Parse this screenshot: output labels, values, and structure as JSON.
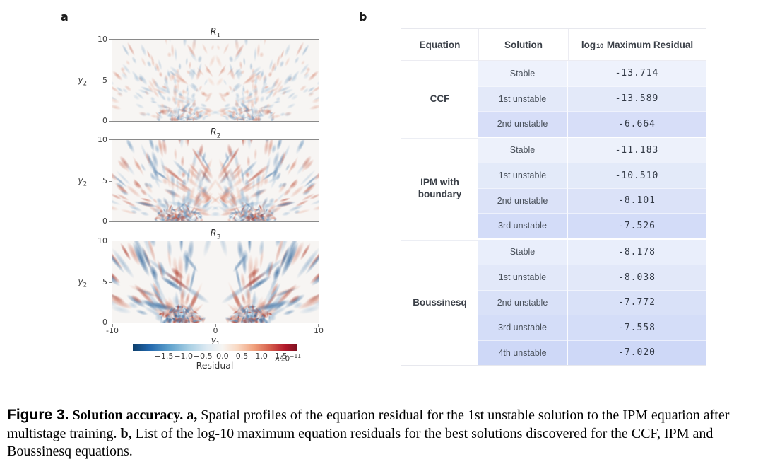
{
  "panel_labels": {
    "a": "a",
    "b": "b"
  },
  "chart_data": {
    "type": "heatmap",
    "description": "Three stacked 2D spatial residual maps (R1, R2, R3) for the 1st unstable IPM solution. Diverging red/blue streaks fan out from two foci at the bottom (y1 near -4 and +4), nearly mirror-symmetric about y1=0, with amplitude increasing from R1 to R3 and an almost-zero vertical band at the centre of R3. Residual magnitudes are of order 1e-11.",
    "panels": [
      {
        "title_base": "R",
        "title_sub": "1",
        "render": {
          "seed": 7,
          "streaks": 210,
          "lenMin": 4,
          "lenMax": 12,
          "widMin": 1.8,
          "widMax": 3.4,
          "intensity": 0.52,
          "centerGap": 8,
          "specks": 70,
          "diagBoost": 1.0
        }
      },
      {
        "title_base": "R",
        "title_sub": "2",
        "render": {
          "seed": 15,
          "streaks": 210,
          "lenMin": 6,
          "lenMax": 18,
          "widMin": 2.0,
          "widMax": 4.0,
          "intensity": 0.8,
          "centerGap": 10,
          "specks": 110,
          "diagBoost": 1.1
        }
      },
      {
        "title_base": "R",
        "title_sub": "3",
        "render": {
          "seed": 23,
          "streaks": 135,
          "lenMin": 10,
          "lenMax": 30,
          "widMin": 2.4,
          "widMax": 5.0,
          "intensity": 1.05,
          "centerGap": 26,
          "specks": 95,
          "diagBoost": 1.35
        }
      }
    ],
    "y_axis": {
      "label_base": "y",
      "label_sub": "2",
      "ticks": [
        "10",
        "5",
        "0"
      ],
      "range": [
        0,
        10
      ]
    },
    "x_axis": {
      "label_base": "y",
      "label_sub": "1",
      "ticks": [
        "-10",
        "0",
        "10"
      ],
      "range": [
        -10,
        10
      ]
    },
    "colorbar": {
      "label": "Residual",
      "ticks": [
        "−1.5",
        "−1.0",
        "−0.5",
        "0.0",
        "0.5",
        "1.0",
        "1.5"
      ],
      "exponent_base": "×10",
      "exponent_sup": "−11",
      "colormap": "RdBu_r",
      "neg_color": "#2166ac",
      "pos_color": "#b2182b",
      "plot_bg": "#f7f5f3",
      "pos_ramp": [
        "#eeb49b",
        "#a52f22"
      ],
      "neg_ramp": [
        "#a9c6dd",
        "#2e6399"
      ],
      "gradient_stops": [
        "#0d3f6b 0%",
        "#2166ac 10%",
        "#5da0cc 22%",
        "#a6cee3 34%",
        "#dce9f2 45%",
        "#f7f5f2 54.7%",
        "#f9d8c2 64%",
        "#f0a07c 74%",
        "#d45c4b 84%",
        "#b2182b 93%",
        "#7f1122 100%"
      ]
    }
  },
  "table": {
    "headers": {
      "equation": "Equation",
      "solution": "Solution",
      "residual_base": "log",
      "residual_sub": "10",
      "residual_rest": "Maximum Residual"
    },
    "groups": [
      {
        "equation": "CCF",
        "rows": [
          {
            "solution": "Stable",
            "residual": "-13.714",
            "shade": "#eef2fc"
          },
          {
            "solution": "1st unstable",
            "residual": "-13.589",
            "shade": "#e3e9f9"
          },
          {
            "solution": "2nd unstable",
            "residual": "-6.664",
            "shade": "#d7def8"
          }
        ]
      },
      {
        "equation": "IPM with boundary",
        "rows": [
          {
            "solution": "Stable",
            "residual": "-11.183",
            "shade": "#edf1fb"
          },
          {
            "solution": "1st unstable",
            "residual": "-10.510",
            "shade": "#e3eaf9"
          },
          {
            "solution": "2nd unstable",
            "residual": "-8.101",
            "shade": "#dbe2f8"
          },
          {
            "solution": "3rd unstable",
            "residual": "-7.526",
            "shade": "#d3dcf8"
          }
        ]
      },
      {
        "equation": "Boussinesq",
        "rows": [
          {
            "solution": "Stable",
            "residual": "-8.178",
            "shade": "#e9eefb"
          },
          {
            "solution": "1st unstable",
            "residual": "-8.038",
            "shade": "#e2e8f9"
          },
          {
            "solution": "2nd unstable",
            "residual": "-7.772",
            "shade": "#d9e1f8"
          },
          {
            "solution": "3rd unstable",
            "residual": "-7.558",
            "shade": "#d4ddf8"
          },
          {
            "solution": "4th unstable",
            "residual": "-7.020",
            "shade": "#ced8f7"
          }
        ]
      }
    ]
  },
  "caption": {
    "fig_label": "Figure 3.",
    "fig_title": " Solution accuracy. ",
    "a_label": "a,",
    "a_text": " Spatial profiles of the equation residual for the 1st unstable solution to the IPM equation after multistage training. ",
    "b_label": "b,",
    "b_text": " List of the log-10 maximum equation residuals for the best solutions discovered for the CCF, IPM and Boussinesq equations."
  }
}
